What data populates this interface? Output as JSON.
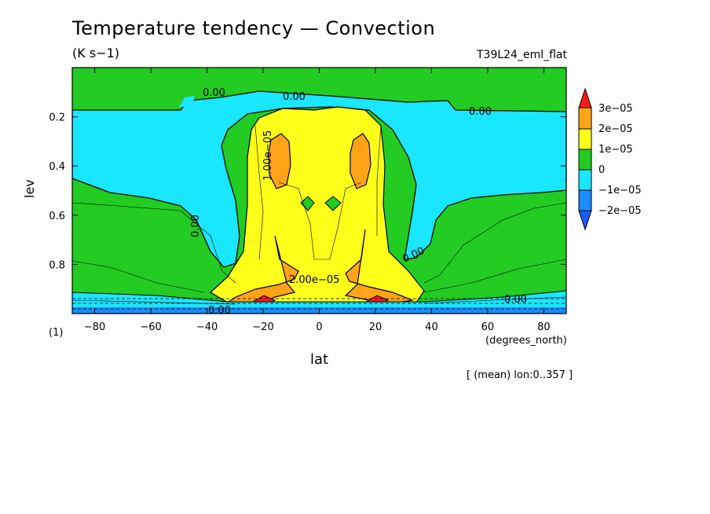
{
  "header": {
    "title": "Temperature tendency — Convection",
    "units": "(K s−1)",
    "run_id": "T39L24_eml_flat",
    "note": "[ (mean) lon:0..357 ]"
  },
  "chart_data": {
    "type": "heatmap",
    "title": "Temperature tendency — Convection",
    "subtitle": "(K s−1)",
    "xlabel": "lat",
    "ylabel": "lev",
    "x_units": "(degrees_north)",
    "y_units": "(1)",
    "xlim": [
      -88,
      88
    ],
    "ylim": [
      1.0,
      0.0
    ],
    "x_ticks": [
      -80,
      -60,
      -40,
      -20,
      0,
      20,
      40,
      60,
      80
    ],
    "x_tick_labels": [
      "−80",
      "−60",
      "−40",
      "−20",
      "0",
      "20",
      "40",
      "60",
      "80"
    ],
    "y_ticks": [
      0.2,
      0.4,
      0.6,
      0.8
    ],
    "y_tick_labels": [
      "0.2",
      "0.4",
      "0.6",
      "0.8"
    ],
    "colorbar": {
      "levels": [
        "3e−05",
        "2e−05",
        "1e−05",
        "0",
        "−1e−05",
        "−2e−05"
      ],
      "colors": [
        "#ff1a1a",
        "#ffa319",
        "#ffff1a",
        "#22cc22",
        "#19e6ff",
        "#1a8cff",
        "#1a5cff"
      ]
    },
    "contour_labels": [
      "0.00",
      "0.00",
      "0.00",
      "0.00",
      "0.00",
      "0.00",
      "0.00",
      "1.00e−05",
      "2.00e−05"
    ],
    "grid": false
  }
}
